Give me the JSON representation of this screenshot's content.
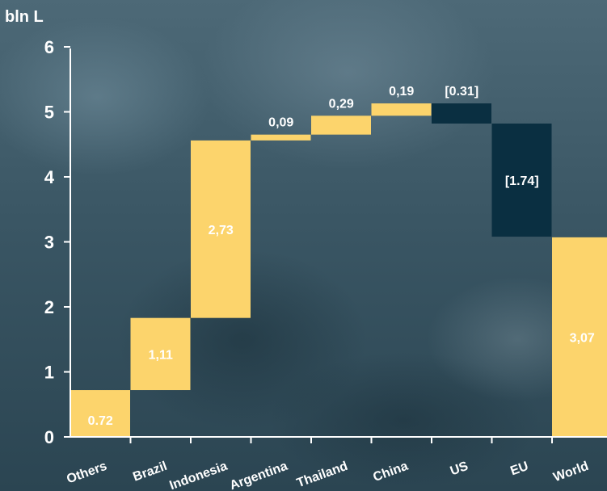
{
  "colors": {
    "increase": "#fcd46c",
    "decrease": "#0a2f41",
    "axis": "#ffffff",
    "label_on_bar": "#ffffff",
    "label_on_background": "#ffffff"
  },
  "chart_data": {
    "type": "bar",
    "subtype": "waterfall",
    "ylabel": "bln L",
    "ylim": [
      0,
      6
    ],
    "yticks": [
      "0",
      "1",
      "2",
      "3",
      "4",
      "5",
      "6"
    ],
    "grid": false,
    "categories": [
      "Others",
      "Brazil",
      "Indonesia",
      "Argentina",
      "Thailand",
      "China",
      "US",
      "EU",
      "World"
    ],
    "values": [
      0.72,
      1.11,
      2.73,
      0.09,
      0.29,
      0.19,
      -0.31,
      -1.74,
      3.07
    ],
    "kinds": [
      "increase",
      "increase",
      "increase",
      "increase",
      "increase",
      "increase",
      "decrease",
      "decrease",
      "total"
    ],
    "data_labels": [
      "0.72",
      "1,11",
      "2,73",
      "0,09",
      "0,29",
      "0,19",
      "[0.31]",
      "[1.74]",
      "3,07"
    ]
  }
}
